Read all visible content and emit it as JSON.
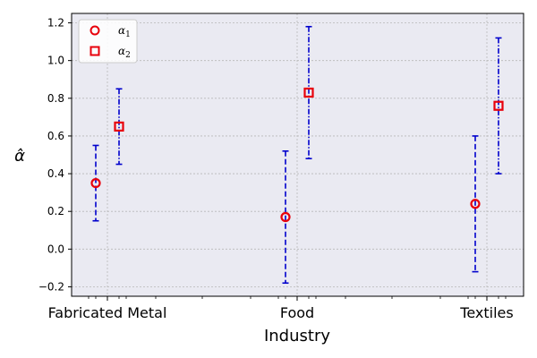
{
  "chart_data": {
    "type": "scatter",
    "title": "",
    "xlabel": "Industry",
    "ylabel": "α̂",
    "categories": [
      "Fabricated Metal",
      "Food",
      "Textiles"
    ],
    "ylim": [
      -0.25,
      1.25
    ],
    "yticks": [
      "−0.2",
      "0.0",
      "0.2",
      "0.4",
      "0.6",
      "0.8",
      "1.0",
      "1.2"
    ],
    "ytick_values": [
      -0.2,
      0.0,
      0.2,
      0.4,
      0.6,
      0.8,
      1.0,
      1.2
    ],
    "grid": true,
    "legend_position": "top-left",
    "series": [
      {
        "name": "α1",
        "legend_base": "α",
        "legend_sub": "1",
        "marker": "circle",
        "marker_color": "#e8000b",
        "errorbar_color": "#0000cc",
        "errorbar_style": "dashed",
        "values": [
          0.35,
          0.17,
          0.24
        ],
        "lower": [
          0.15,
          -0.18,
          -0.12
        ],
        "upper": [
          0.55,
          0.52,
          0.6
        ]
      },
      {
        "name": "α2",
        "legend_base": "α",
        "legend_sub": "2",
        "marker": "square",
        "marker_color": "#e8000b",
        "errorbar_color": "#0000cc",
        "errorbar_style": "dashdot",
        "values": [
          0.65,
          0.83,
          0.76
        ],
        "lower": [
          0.45,
          0.48,
          0.4
        ],
        "upper": [
          0.85,
          1.18,
          1.12
        ]
      }
    ]
  }
}
